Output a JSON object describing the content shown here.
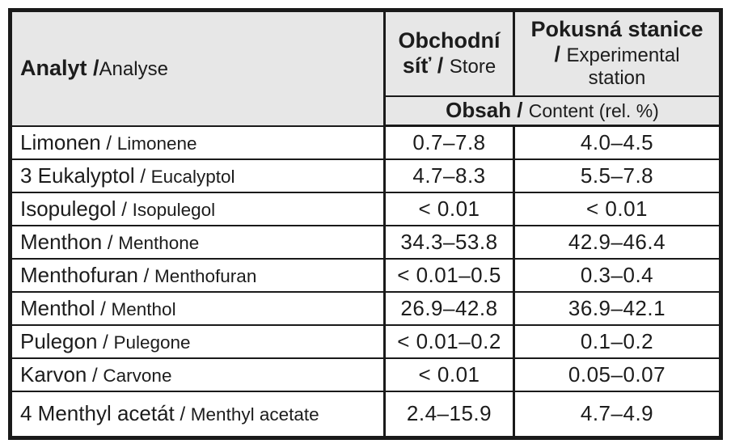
{
  "table": {
    "header": {
      "analyt_bold": "Analyt /",
      "analyt_regular": "Analyse",
      "store_bold_line1": "Obchodní",
      "store_bold_line2": "síť / ",
      "store_regular_line2": "Store",
      "station_bold_line1": "Pokusná stanice",
      "station_bold_sep": "/ ",
      "station_regular_line2": "Experimental",
      "station_regular_line3": "station",
      "obsah_bold": "Obsah / ",
      "obsah_regular": "Content (rel. %)"
    },
    "name_separator": " / ",
    "rows": [
      {
        "cz": "Limonen",
        "en": "Limonene",
        "store": "0.7–7.8",
        "station": "4.0–4.5"
      },
      {
        "cz": "3 Eukalyptol",
        "en": "Eucalyptol",
        "store": "4.7–8.3",
        "station": "5.5–7.8"
      },
      {
        "cz": "Isopulegol",
        "en": "Isopulegol",
        "store": "< 0.01",
        "station": "< 0.01"
      },
      {
        "cz": "Menthon",
        "en": "Menthone",
        "store": "34.3–53.8",
        "station": "42.9–46.4"
      },
      {
        "cz": "Menthofuran",
        "en": "Menthofuran",
        "store": "< 0.01–0.5",
        "station": "0.3–0.4"
      },
      {
        "cz": "Menthol",
        "en": "Menthol",
        "store": "26.9–42.8",
        "station": "36.9–42.1"
      },
      {
        "cz": "Pulegon",
        "en": "Pulegone",
        "store": "< 0.01–0.2",
        "station": "0.1–0.2"
      },
      {
        "cz": "Karvon",
        "en": "Carvone",
        "store": "< 0.01",
        "station": "0.05–0.07"
      },
      {
        "cz": "4 Menthyl acetát",
        "en": "Menthyl acetate",
        "store": "2.4–15.9",
        "station": "4.7–4.9"
      }
    ],
    "colors": {
      "header_bg": "#e7e7e7",
      "border": "#1a1a1a",
      "text": "#1c1c1c"
    }
  }
}
